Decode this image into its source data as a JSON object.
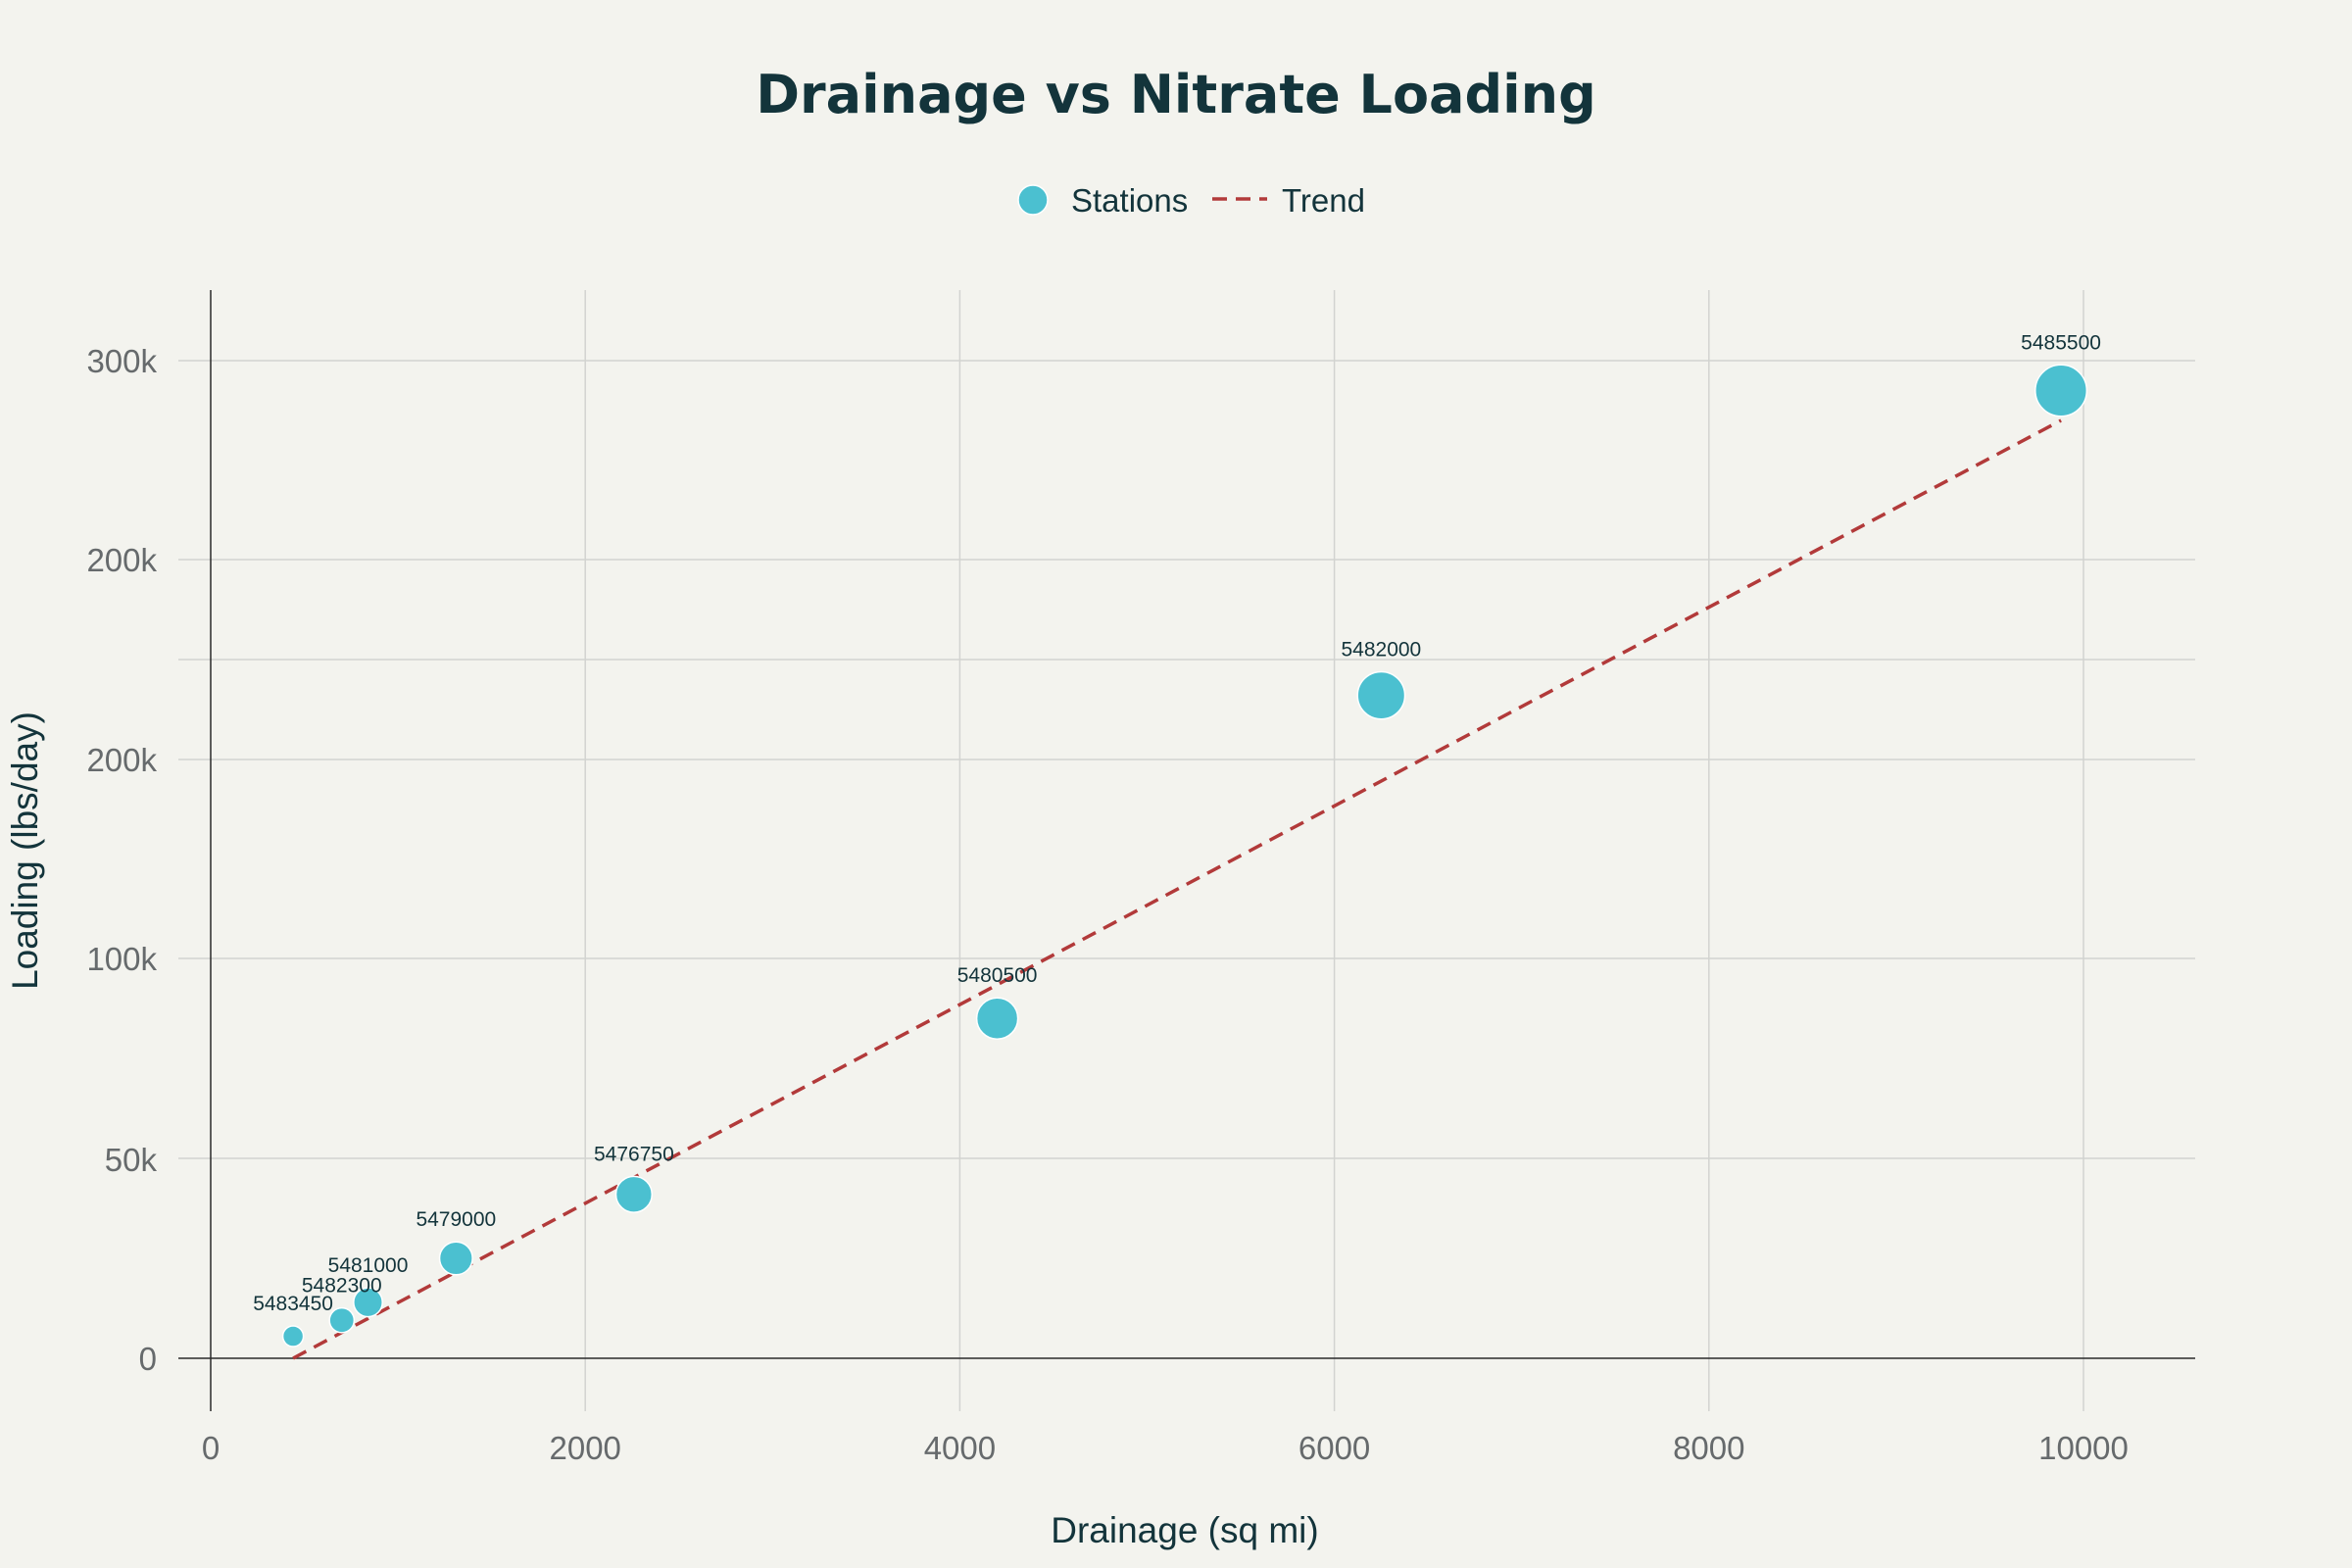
{
  "chart_data": {
    "type": "scatter",
    "title": "Drainage vs Nitrate Loading",
    "xlabel": "Drainage (sq mi)",
    "ylabel": "Loading (lbs/day)",
    "xlim": [
      -200,
      10600
    ],
    "x_ticks": [
      0,
      2000,
      4000,
      6000,
      8000,
      10000
    ],
    "x_tick_labels": [
      "0",
      "2000",
      "4000",
      "6000",
      "8000",
      "10000"
    ],
    "y_ticks": [
      0,
      50000,
      100000,
      200000,
      300000
    ],
    "y_tick_labels": [
      "0",
      "50k",
      "100k",
      "200k",
      "300k"
    ],
    "y_scale": "symlog",
    "y_linear_threshold": 100000,
    "grid": true,
    "legend": {
      "position": "top-center",
      "entries": [
        {
          "name": "Stations",
          "marker": "circle",
          "color": "#4bc0d0"
        },
        {
          "name": "Trend",
          "marker": "dashed-line",
          "color": "#b23a3a"
        }
      ]
    },
    "series": [
      {
        "name": "Stations",
        "color": "#4bc0d0",
        "points": [
          {
            "label": "5483450",
            "x": 440,
            "y": 5500,
            "size": 1
          },
          {
            "label": "5482300",
            "x": 700,
            "y": 9500,
            "size": 1.2
          },
          {
            "label": "5481000",
            "x": 840,
            "y": 14000,
            "size": 1.4
          },
          {
            "label": "5479000",
            "x": 1310,
            "y": 25000,
            "size": 1.6
          },
          {
            "label": "5476750",
            "x": 2260,
            "y": 41000,
            "size": 1.75
          },
          {
            "label": "5480500",
            "x": 4200,
            "y": 85000,
            "size": 2.0
          },
          {
            "label": "5482000",
            "x": 6250,
            "y": 188000,
            "size": 2.3
          },
          {
            "label": "5485500",
            "x": 9880,
            "y": 290000,
            "size": 2.5
          }
        ]
      },
      {
        "name": "Trend",
        "color": "#b23a3a",
        "style": "dashed",
        "x": [
          440,
          9880
        ],
        "y": [
          0,
          280000
        ]
      }
    ]
  }
}
